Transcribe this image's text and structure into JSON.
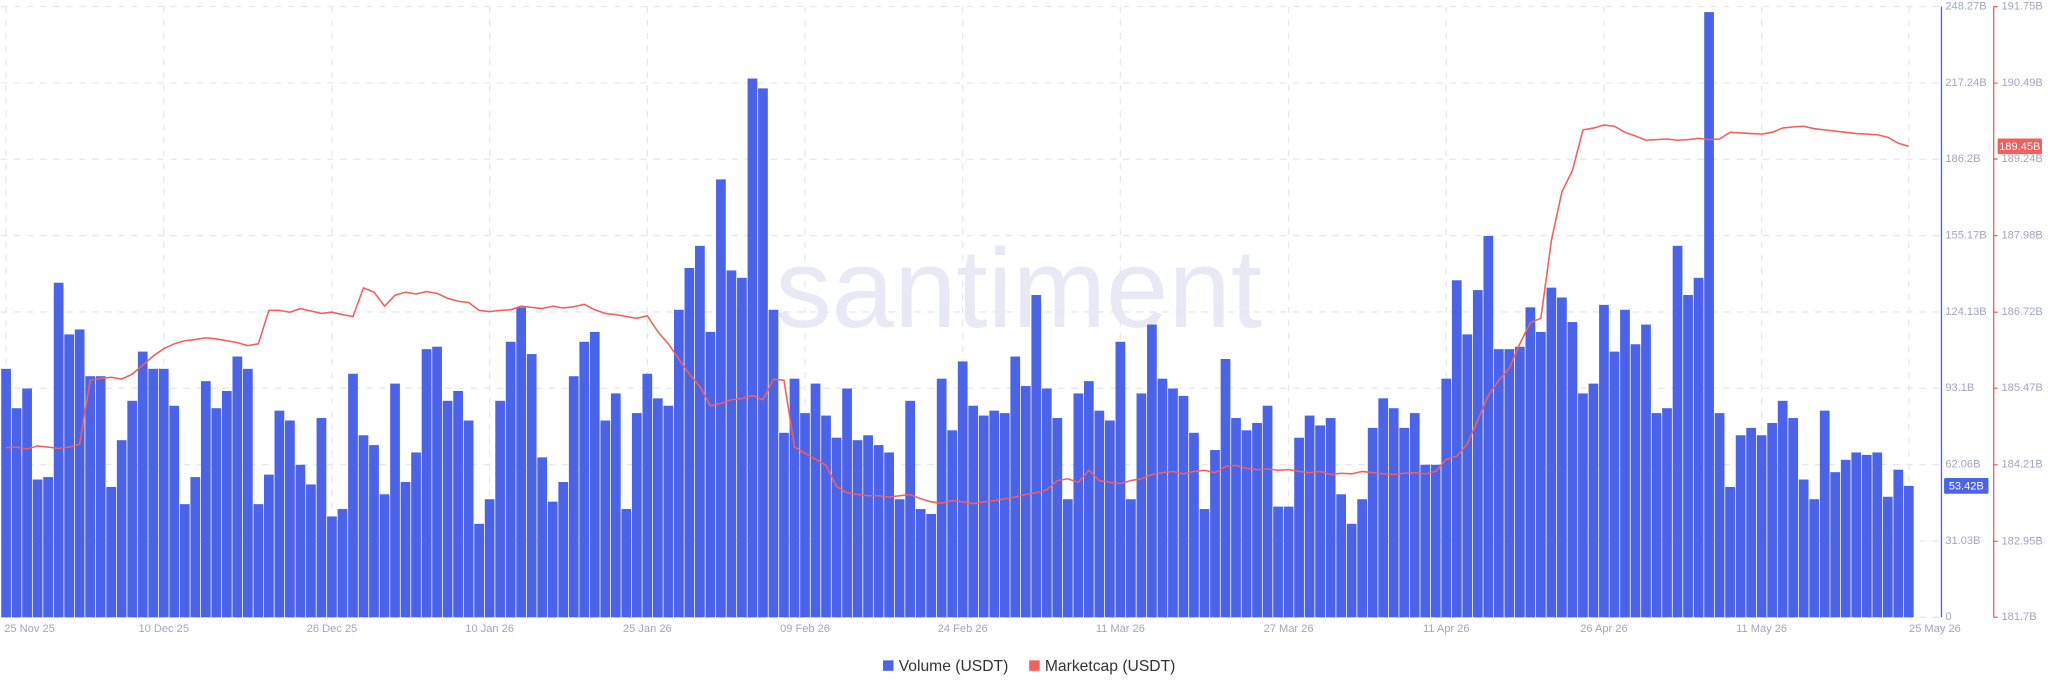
{
  "chart_data": {
    "type": "bar",
    "watermark": "santiment",
    "categories": [
      "25 Nov 25",
      null,
      null,
      null,
      null,
      null,
      null,
      null,
      null,
      null,
      null,
      null,
      null,
      null,
      null,
      "10 Dec 25",
      null,
      null,
      null,
      null,
      null,
      null,
      null,
      null,
      null,
      null,
      null,
      null,
      null,
      null,
      null,
      "26 Dec 25",
      null,
      null,
      null,
      null,
      null,
      null,
      null,
      null,
      null,
      null,
      null,
      null,
      null,
      null,
      "10 Jan 26",
      null,
      null,
      null,
      null,
      null,
      null,
      null,
      null,
      null,
      null,
      null,
      null,
      null,
      null,
      "25 Jan 26",
      null,
      null,
      null,
      null,
      null,
      null,
      null,
      null,
      null,
      null,
      null,
      null,
      null,
      null,
      "09 Feb 26",
      null,
      null,
      null,
      null,
      null,
      null,
      null,
      null,
      null,
      null,
      null,
      null,
      null,
      null,
      "24 Feb 26",
      null,
      null,
      null,
      null,
      null,
      null,
      null,
      null,
      null,
      null,
      null,
      null,
      null,
      null,
      "11 Mar 26",
      null,
      null,
      null,
      null,
      null,
      null,
      null,
      null,
      null,
      null,
      null,
      null,
      null,
      null,
      null,
      "27 Mar 26",
      null,
      null,
      null,
      null,
      null,
      null,
      null,
      null,
      null,
      null,
      null,
      null,
      null,
      null,
      "11 Apr 26",
      null,
      null,
      null,
      null,
      null,
      null,
      null,
      null,
      null,
      null,
      null,
      null,
      null,
      null,
      "26 Apr 26",
      null,
      null,
      null,
      null,
      null,
      null,
      null,
      null,
      null,
      null,
      null,
      null,
      null,
      null,
      "11 May 26",
      null,
      null,
      null,
      null,
      null,
      null,
      null,
      null,
      null,
      null,
      null,
      null,
      null,
      "25 May 26"
    ],
    "series": [
      {
        "name": "Volume (USDT)",
        "type": "bar",
        "color": "#4a63e8",
        "last_value_label": "53.42B",
        "values": [
          101,
          85,
          93,
          56,
          57,
          136,
          115,
          117,
          98,
          98,
          53,
          72,
          88,
          108,
          101,
          101,
          86,
          46,
          57,
          96,
          85,
          92,
          106,
          101,
          46,
          58,
          84,
          80,
          62,
          54,
          81,
          41,
          44,
          99,
          74,
          70,
          50,
          95,
          55,
          67,
          109,
          110,
          88,
          92,
          80,
          38,
          48,
          88,
          112,
          126,
          107,
          65,
          47,
          55,
          98,
          112,
          116,
          80,
          91,
          44,
          83,
          99,
          89,
          86,
          125,
          142,
          151,
          116,
          178,
          141,
          138,
          219,
          215,
          125,
          75,
          97,
          83,
          95,
          82,
          73,
          93,
          72,
          74,
          70,
          67,
          48,
          88,
          44,
          42,
          97,
          76,
          104,
          86,
          82,
          84,
          83,
          106,
          94,
          131,
          93,
          81,
          48,
          91,
          96,
          84,
          80,
          112,
          48,
          91,
          119,
          97,
          93,
          90,
          75,
          44,
          68,
          105,
          81,
          76,
          79,
          86,
          45,
          45,
          73,
          82,
          78,
          81,
          50,
          38,
          48,
          77,
          89,
          85,
          77,
          83,
          62,
          62,
          97,
          137,
          115,
          133,
          155,
          109,
          109,
          110,
          126,
          116,
          134,
          130,
          120,
          91,
          95,
          127,
          108,
          125,
          111,
          119,
          83,
          85,
          151,
          131,
          138,
          246,
          83,
          53,
          74,
          77,
          74,
          79,
          88,
          81,
          56,
          48,
          84,
          59,
          64,
          67,
          66,
          67,
          49,
          60,
          53.42
        ]
      },
      {
        "name": "Marketcap (USDT)",
        "type": "line",
        "color": "#f25f5c",
        "axis": "y2",
        "last_value_label": "189.45B",
        "values": [
          184.49,
          184.5,
          184.47,
          184.52,
          184.5,
          184.48,
          184.5,
          184.55,
          185.6,
          185.63,
          185.65,
          185.62,
          185.7,
          185.85,
          186.0,
          186.12,
          186.2,
          186.25,
          186.27,
          186.3,
          186.28,
          186.25,
          186.22,
          186.17,
          186.2,
          186.75,
          186.75,
          186.72,
          186.78,
          186.74,
          186.7,
          186.72,
          186.68,
          186.65,
          187.12,
          187.05,
          186.82,
          187.0,
          187.05,
          187.02,
          187.06,
          187.03,
          186.95,
          186.9,
          186.88,
          186.75,
          186.73,
          186.75,
          186.76,
          186.82,
          186.8,
          186.78,
          186.82,
          186.79,
          186.81,
          186.85,
          186.76,
          186.7,
          186.68,
          186.65,
          186.62,
          186.66,
          186.4,
          186.2,
          185.95,
          185.7,
          185.5,
          185.18,
          185.22,
          185.28,
          185.3,
          185.35,
          185.28,
          185.62,
          185.6,
          184.5,
          184.4,
          184.3,
          184.2,
          183.85,
          183.75,
          183.72,
          183.7,
          183.7,
          183.68,
          183.7,
          183.72,
          183.65,
          183.6,
          183.58,
          183.62,
          183.6,
          183.57,
          183.6,
          183.62,
          183.65,
          183.68,
          183.72,
          183.75,
          183.8,
          183.95,
          183.98,
          183.92,
          184.12,
          183.95,
          183.92,
          183.9,
          183.95,
          183.98,
          184.05,
          184.08,
          184.1,
          184.06,
          184.1,
          184.12,
          184.08,
          184.18,
          184.2,
          184.15,
          184.13,
          184.14,
          184.12,
          184.13,
          184.1,
          184.08,
          184.1,
          184.05,
          184.07,
          184.06,
          184.1,
          184.08,
          184.06,
          184.05,
          184.07,
          184.08,
          184.06,
          184.1,
          184.3,
          184.35,
          184.55,
          184.95,
          185.35,
          185.6,
          185.8,
          186.2,
          186.55,
          186.62,
          187.9,
          188.7,
          189.05,
          189.72,
          189.75,
          189.8,
          189.78,
          189.68,
          189.62,
          189.55,
          189.56,
          189.57,
          189.55,
          189.56,
          189.58,
          189.56,
          189.57,
          189.68,
          189.67,
          189.66,
          189.65,
          189.68,
          189.75,
          189.77,
          189.78,
          189.74,
          189.72,
          189.7,
          189.68,
          189.66,
          189.65,
          189.64,
          189.6,
          189.5,
          189.45
        ]
      }
    ],
    "ylim": [
      0,
      248.27
    ],
    "yticks": [
      0,
      {
        "value": 31.03,
        "label": "31.03B"
      },
      {
        "value": 62.06,
        "label": "62.06B"
      },
      {
        "value": 93.1,
        "label": "93.1B"
      },
      {
        "value": 124.13,
        "label": "124.13B"
      },
      {
        "value": 155.17,
        "label": "155.17B"
      },
      {
        "value": 186.2,
        "label": "186.2B"
      },
      {
        "value": 217.24,
        "label": "217.24B"
      },
      {
        "value": 248.27,
        "label": "248.27B"
      }
    ],
    "y2lim": [
      181.7,
      191.75
    ],
    "y2ticks": [
      {
        "value": 181.7,
        "label": "181.7B"
      },
      {
        "value": 182.95,
        "label": "182.95B"
      },
      {
        "value": 184.21,
        "label": "184.21B"
      },
      {
        "value": 185.47,
        "label": "185.47B"
      },
      {
        "value": 186.72,
        "label": "186.72B"
      },
      {
        "value": 187.98,
        "label": "187.98B"
      },
      {
        "value": 189.24,
        "label": "189.24B"
      },
      {
        "value": 190.49,
        "label": "190.49B"
      },
      {
        "value": 191.75,
        "label": "191.75B"
      }
    ],
    "grid": true
  }
}
